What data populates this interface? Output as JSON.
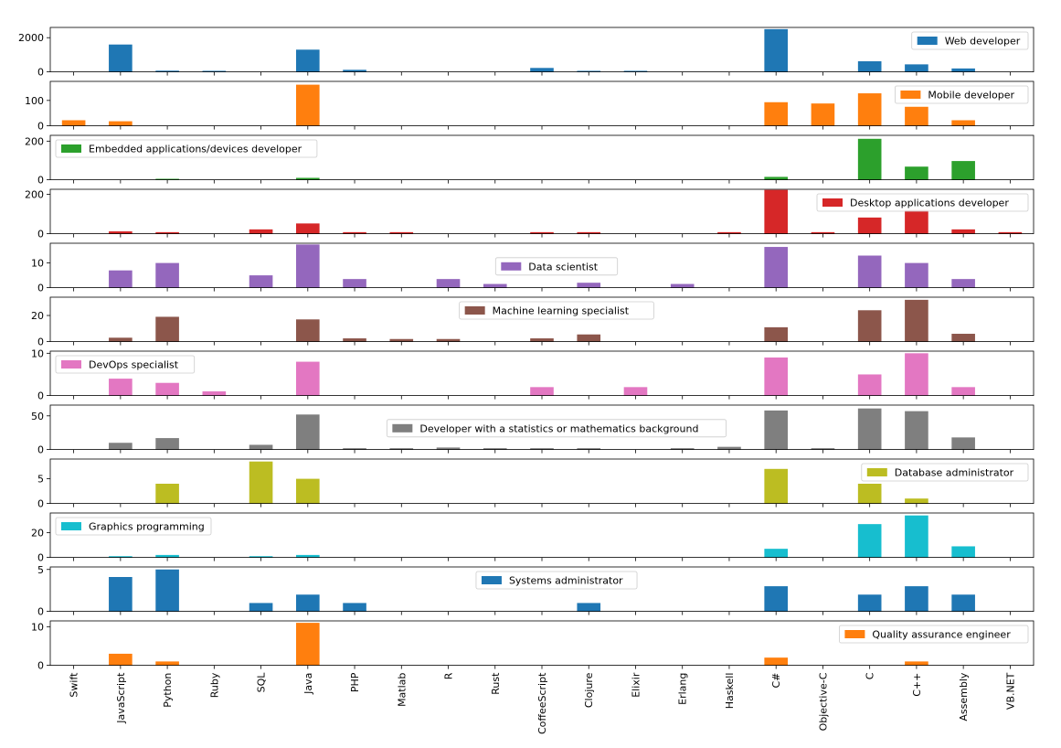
{
  "chart_data": {
    "type": "bar",
    "layout": "stacked-subplots",
    "categories": [
      "Swift",
      "JavaScript",
      "Python",
      "Ruby",
      "SQL",
      "Java",
      "PHP",
      "Matlab",
      "R",
      "Rust",
      "CoffeeScript",
      "Clojure",
      "Elixir",
      "Erlang",
      "Haskell",
      "C#",
      "Objective-C",
      "C",
      "C++",
      "Assembly",
      "VB.NET"
    ],
    "panels": [
      {
        "name": "Web developer",
        "color": "#1f77b4",
        "legend_pos": "upper-right",
        "yticks": [
          0,
          2000
        ],
        "ylim": [
          0,
          2600
        ],
        "values": [
          0,
          1600,
          70,
          60,
          0,
          1300,
          120,
          0,
          0,
          0,
          230,
          60,
          60,
          0,
          0,
          2500,
          0,
          620,
          440,
          200,
          0
        ]
      },
      {
        "name": "Mobile developer",
        "color": "#ff7f0e",
        "legend_pos": "upper-right",
        "yticks": [
          0,
          100
        ],
        "ylim": [
          0,
          175
        ],
        "values": [
          22,
          18,
          0,
          0,
          0,
          162,
          0,
          0,
          0,
          0,
          0,
          0,
          0,
          0,
          0,
          93,
          88,
          128,
          75,
          22,
          0
        ]
      },
      {
        "name": "Embedded applications/devices developer",
        "color": "#2ca02c",
        "legend_pos": "upper-left",
        "yticks": [
          0,
          200
        ],
        "ylim": [
          0,
          230
        ],
        "values": [
          0,
          0,
          5,
          0,
          0,
          10,
          0,
          0,
          0,
          0,
          0,
          0,
          0,
          0,
          0,
          15,
          0,
          212,
          68,
          97,
          0
        ]
      },
      {
        "name": "Desktop applications developer",
        "color": "#d62728",
        "legend_pos": "upper-right",
        "yticks": [
          0,
          200
        ],
        "ylim": [
          0,
          225
        ],
        "values": [
          0,
          12,
          8,
          0,
          22,
          52,
          8,
          8,
          0,
          0,
          8,
          8,
          0,
          0,
          8,
          222,
          8,
          82,
          120,
          22,
          8
        ]
      },
      {
        "name": "Data scientist",
        "color": "#9467bd",
        "legend_pos": "center",
        "yticks": [
          0,
          10
        ],
        "ylim": [
          0,
          18
        ],
        "values": [
          0,
          7,
          10,
          0,
          5,
          17.5,
          3.5,
          0,
          3.5,
          1.5,
          0,
          2,
          0,
          1.5,
          0,
          16.5,
          0,
          13,
          10,
          3.5,
          0
        ]
      },
      {
        "name": "Machine learning specialist",
        "color": "#8c564b",
        "legend_pos": "upper-center",
        "yticks": [
          0,
          20
        ],
        "ylim": [
          0,
          34
        ],
        "values": [
          0,
          3,
          19,
          0,
          0,
          17,
          2.5,
          2,
          2,
          0,
          2.5,
          5.5,
          0,
          0,
          0,
          11,
          0,
          24,
          32,
          6,
          0
        ]
      },
      {
        "name": "DevOps specialist",
        "color": "#e377c2",
        "legend_pos": "upper-left",
        "yticks": [
          0,
          10
        ],
        "ylim": [
          0,
          10.5
        ],
        "values": [
          0,
          4,
          3,
          1,
          0,
          8,
          0,
          0,
          0,
          0,
          2,
          0,
          2,
          0,
          0,
          9,
          0,
          5,
          10,
          2,
          0
        ]
      },
      {
        "name": "Developer with a statistics or mathematics background",
        "color": "#7f7f7f",
        "legend_pos": "center",
        "yticks": [
          0,
          50
        ],
        "ylim": [
          0,
          66
        ],
        "values": [
          0,
          10,
          17,
          0,
          7,
          52,
          2,
          2,
          3,
          2,
          2,
          2,
          0,
          2,
          4,
          58,
          2,
          61,
          57,
          18,
          0
        ]
      },
      {
        "name": "Database administrator",
        "color": "#bcbd22",
        "legend_pos": "upper-right",
        "yticks": [
          0,
          5
        ],
        "ylim": [
          0,
          9
        ],
        "values": [
          0,
          0,
          4,
          0,
          8.5,
          5,
          0,
          0,
          0,
          0,
          0,
          0,
          0,
          0,
          0,
          7,
          0,
          4,
          1,
          0,
          0
        ]
      },
      {
        "name": "Graphics programming",
        "color": "#17becf",
        "legend_pos": "upper-left",
        "yticks": [
          0,
          20
        ],
        "ylim": [
          0,
          36
        ],
        "values": [
          0,
          1,
          2,
          0,
          1,
          2,
          0,
          0,
          0,
          0,
          0,
          0,
          0,
          0,
          0,
          7,
          0,
          27,
          34,
          9,
          0
        ]
      },
      {
        "name": "Systems administrator",
        "color": "#1f77b4",
        "legend_pos": "upper-center",
        "yticks": [
          0,
          5
        ],
        "ylim": [
          0,
          5.3
        ],
        "values": [
          0,
          4.1,
          5,
          0,
          1,
          2,
          1,
          0,
          0,
          0,
          0,
          1,
          0,
          0,
          0,
          3,
          0,
          2,
          3,
          2,
          0
        ]
      },
      {
        "name": "Quality assurance engineer",
        "color": "#ff7f0e",
        "legend_pos": "upper-right",
        "yticks": [
          0,
          10
        ],
        "ylim": [
          0,
          11.5
        ],
        "values": [
          0,
          3,
          1,
          0,
          0,
          11,
          0,
          0,
          0,
          0,
          0,
          0,
          0,
          0,
          0,
          2,
          0,
          0,
          1,
          0,
          0
        ]
      }
    ]
  }
}
